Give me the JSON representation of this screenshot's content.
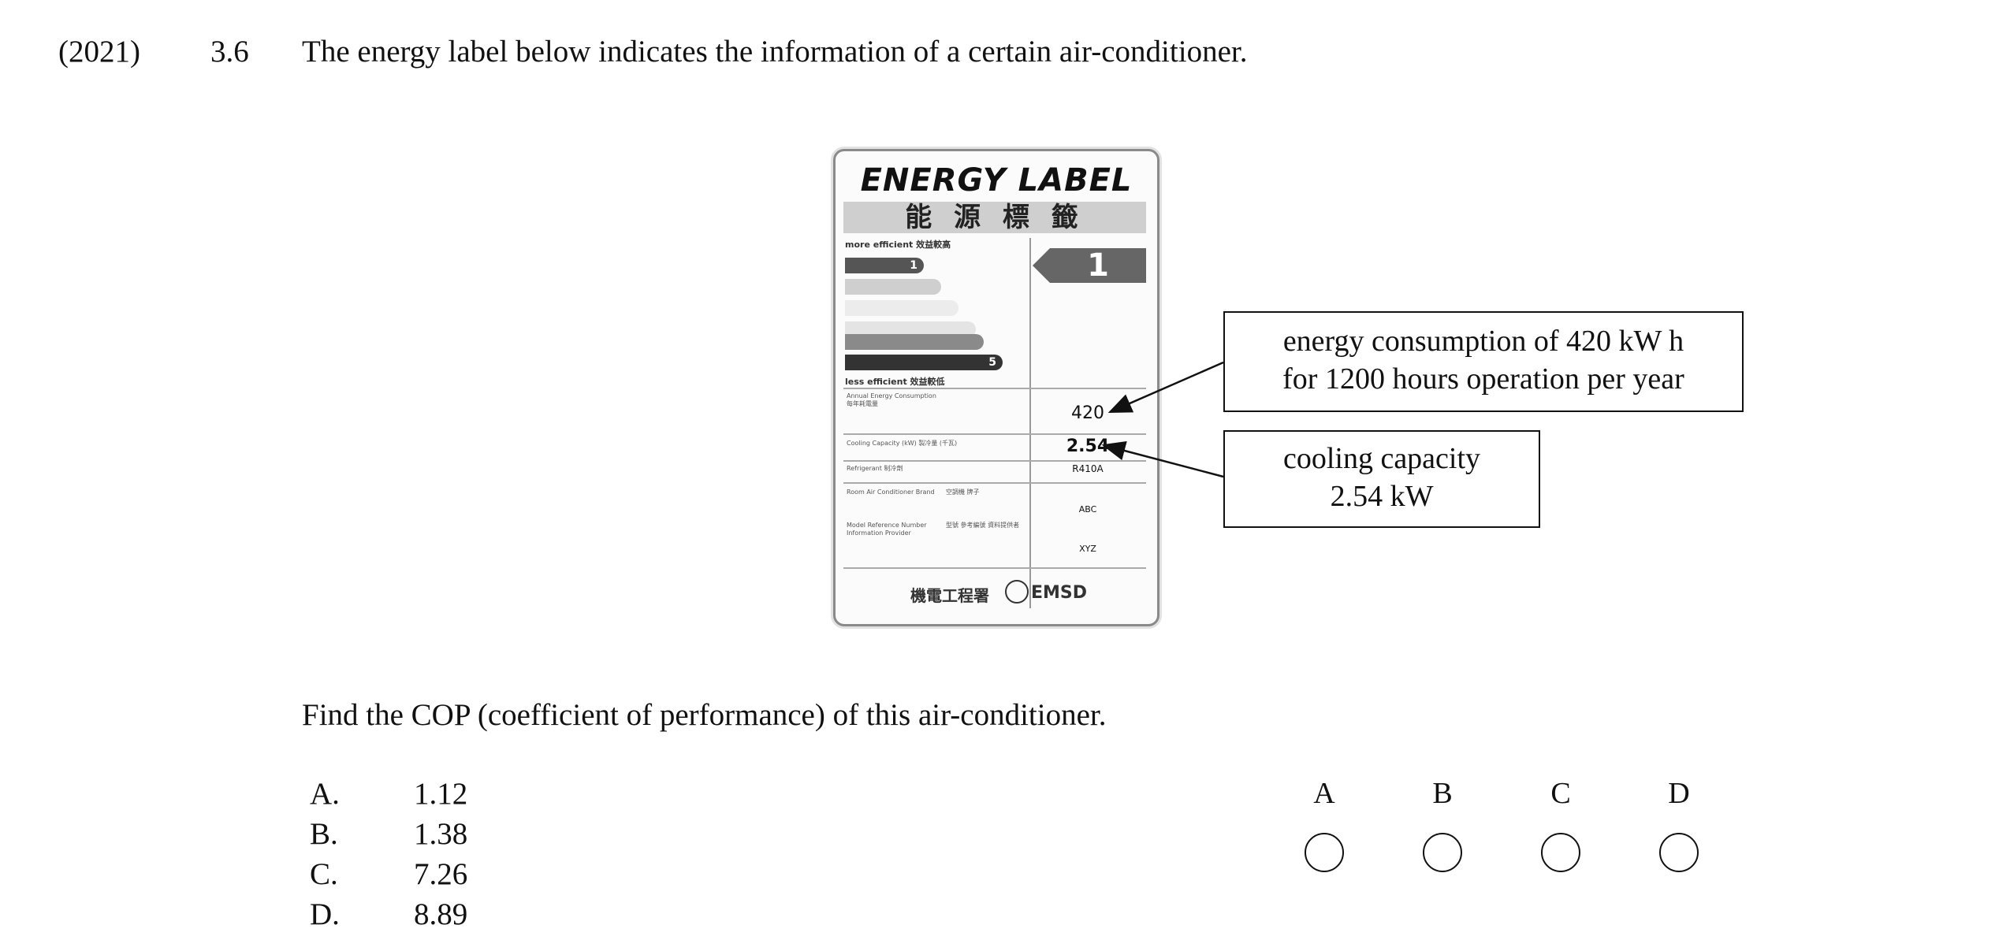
{
  "question": {
    "year": "(2021)",
    "number": "3.6",
    "stem": "The energy label below indicates the information of a certain air-conditioner.",
    "prompt": "Find the COP (coefficient of performance) of this air-conditioner."
  },
  "energy_label": {
    "title": "ENERGY LABEL",
    "title_cn": "能 源 標 籤",
    "more_efficient": "more efficient 效益較高",
    "less_efficient": "less efficient 效益較低",
    "grade_top": "1",
    "grade_bottom": "5",
    "rating": "1",
    "row_annual_energy": "Annual Energy Consumption",
    "row_annual_energy_cn": "每年耗電量",
    "annual_energy_value": "420",
    "row_cooling_capacity": "Cooling Capacity (kW) 製冷量 (千瓦)",
    "cooling_capacity_value": "2.54",
    "row_refrigerant": "Refrigerant 制冷劑",
    "refrigerant_value": "R410A",
    "row_brand": "Room Air Conditioner Brand",
    "row_brand_cn": "空調機 牌子",
    "row_model": "Model Reference Number Information Provider",
    "row_model_cn": "型號 參考編號 資料提供者",
    "brand_value": "ABC",
    "model_value": "XYZ",
    "footer_cn": "機電工程署",
    "footer": "EMSD"
  },
  "callouts": {
    "energy_line1": "energy consumption of 420 kW h",
    "energy_line2": "for 1200 hours operation per year",
    "cooling_line1": "cooling capacity",
    "cooling_line2": "2.54 kW"
  },
  "options": [
    {
      "letter": "A.",
      "value": "1.12"
    },
    {
      "letter": "B.",
      "value": "1.38"
    },
    {
      "letter": "C.",
      "value": "7.26"
    },
    {
      "letter": "D.",
      "value": "8.89"
    }
  ],
  "answer_bubbles": [
    "A",
    "B",
    "C",
    "D"
  ]
}
